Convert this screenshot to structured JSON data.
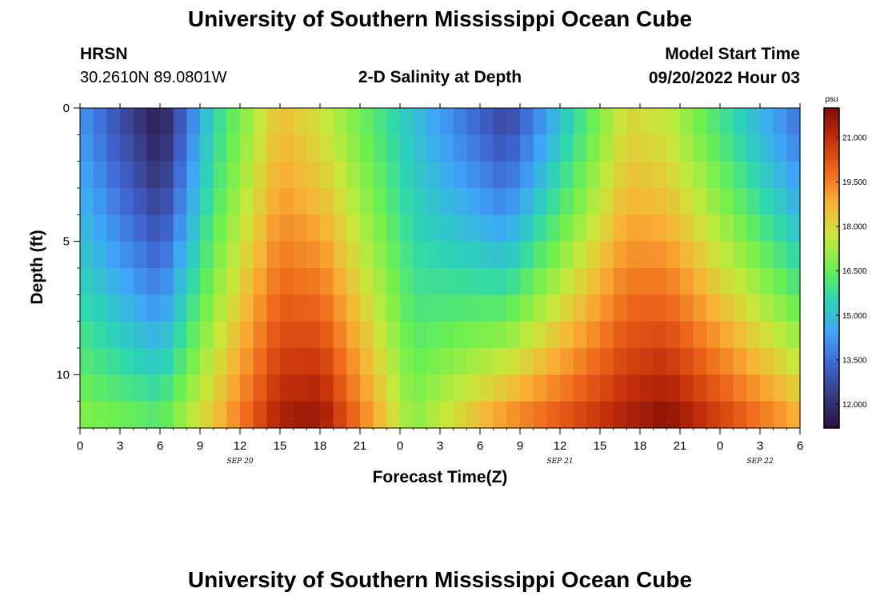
{
  "header": {
    "title": "University of Southern Mississippi Ocean Cube",
    "station": "HRSN",
    "coords": "30.2610N  89.0801W",
    "subtitle": "2-D Salinity at Depth",
    "model_start_label": "Model Start Time",
    "model_start_value": "09/20/2022 Hour 03"
  },
  "footer": {
    "title": "University of Southern Mississippi Ocean Cube"
  },
  "chart_data": {
    "type": "heatmap",
    "title": "2-D Salinity at Depth",
    "xlabel": "Forecast Time(Z)",
    "ylabel": "Depth (ft)",
    "x_ticks": [
      "0",
      "3",
      "6",
      "9",
      "12",
      "15",
      "18",
      "21",
      "0",
      "3",
      "6",
      "9",
      "12",
      "15",
      "18",
      "21",
      "0",
      "3",
      "6"
    ],
    "x_range_hours": [
      0,
      54
    ],
    "date_labels": [
      {
        "text": "SEP 20",
        "hour": 12
      },
      {
        "text": "SEP 21",
        "hour": 36
      },
      {
        "text": "SEP 22",
        "hour": 51
      }
    ],
    "y_ticks": [
      "0",
      "5",
      "10"
    ],
    "y_range_ft": [
      0,
      12
    ],
    "colorbar": {
      "unit": "psu",
      "range": [
        11.2,
        22.0
      ],
      "labels": [
        "21.000",
        "19.500",
        "18.000",
        "16.500",
        "15.000",
        "13.500",
        "12.000"
      ],
      "colors": [
        "#2a1144",
        "#37397f",
        "#3f66d4",
        "#3ea6f7",
        "#2bd6b2",
        "#6cf04f",
        "#c8e83a",
        "#f9b235",
        "#ef6a1b",
        "#c6300a",
        "#7f0c05"
      ]
    },
    "depth_rows_ft": [
      0.5,
      1.5,
      2.5,
      3.5,
      4.5,
      5.5,
      6.5,
      7.5,
      8.5,
      9.5,
      10.5,
      11.5
    ],
    "key_profiles_psu": [
      {
        "hour": 0,
        "surface": 14.2,
        "bottom": 17.0
      },
      {
        "hour": 6,
        "surface": 11.4,
        "bottom": 16.5
      },
      {
        "hour": 10,
        "surface": 15.5,
        "bottom": 18.5
      },
      {
        "hour": 15,
        "surface": 18.5,
        "bottom": 21.5
      },
      {
        "hour": 18,
        "surface": 17.8,
        "bottom": 21.8
      },
      {
        "hour": 25,
        "surface": 15.0,
        "bottom": 17.0
      },
      {
        "hour": 32,
        "surface": 12.5,
        "bottom": 19.5
      },
      {
        "hour": 41,
        "surface": 18.0,
        "bottom": 21.5
      },
      {
        "hour": 44,
        "surface": 17.6,
        "bottom": 22.0
      },
      {
        "hour": 54,
        "surface": 13.5,
        "bottom": 19.0
      }
    ]
  }
}
